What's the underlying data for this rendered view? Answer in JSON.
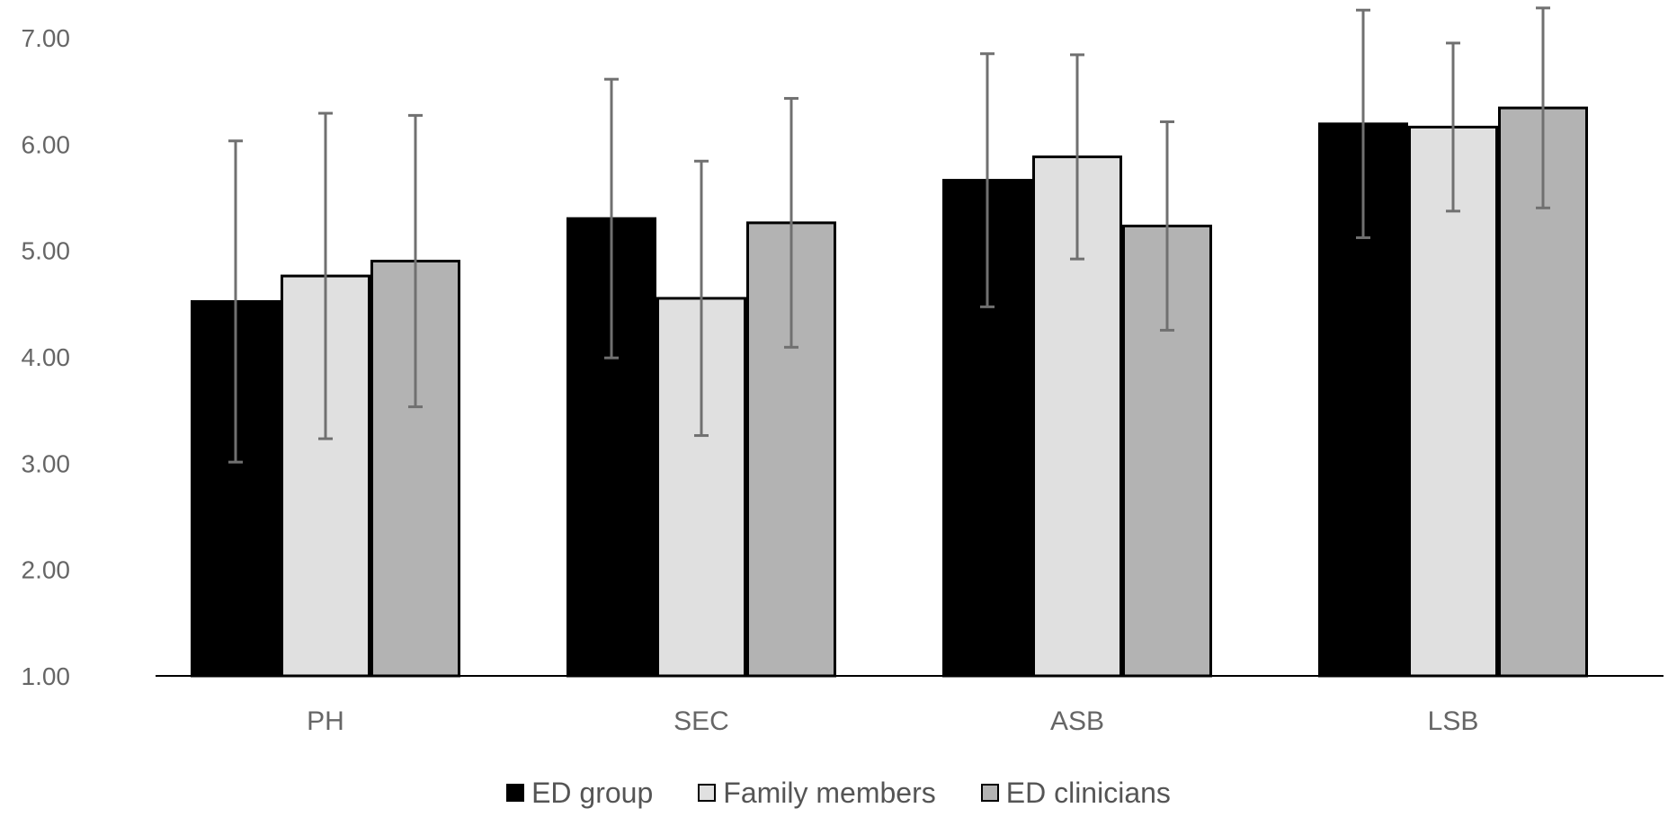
{
  "chart_data": {
    "type": "bar",
    "title": "",
    "xlabel": "",
    "ylabel": "",
    "ylim": [
      1,
      7
    ],
    "yticks": [
      "1.00",
      "2.00",
      "3.00",
      "4.00",
      "5.00",
      "6.00",
      "7.00"
    ],
    "categories": [
      "PH",
      "SEC",
      "ASB",
      "LSB"
    ],
    "series": [
      {
        "name": "ED group",
        "color": "#000000",
        "values": [
          4.52,
          5.3,
          5.66,
          6.19
        ],
        "errors": [
          1.51,
          1.31,
          1.19,
          1.07
        ]
      },
      {
        "name": "Family members",
        "color": "#e0e0e0",
        "values": [
          4.76,
          4.55,
          5.88,
          6.16
        ],
        "errors": [
          1.53,
          1.29,
          0.96,
          0.79
        ]
      },
      {
        "name": "ED clinicians",
        "color": "#b3b3b3",
        "values": [
          4.9,
          5.26,
          5.23,
          6.34
        ],
        "errors": [
          1.37,
          1.17,
          0.98,
          0.94
        ]
      }
    ],
    "legend_position": "bottom",
    "error_bar_color": "#707070"
  }
}
